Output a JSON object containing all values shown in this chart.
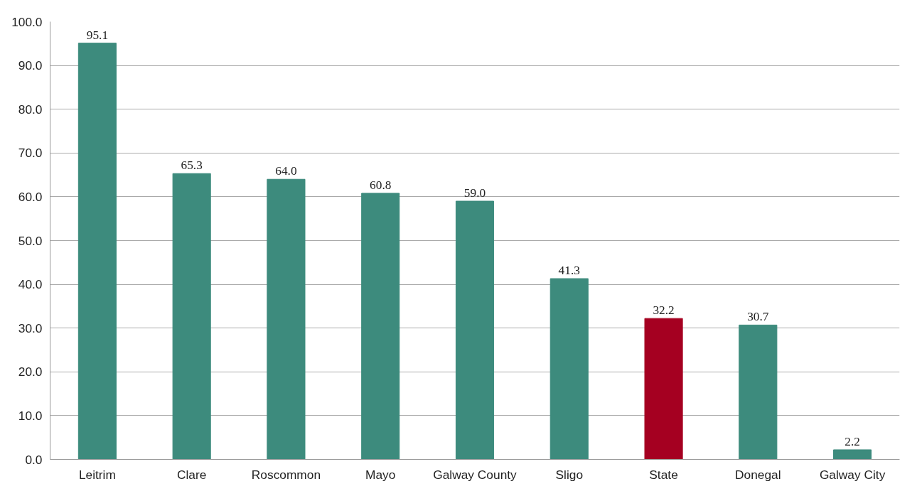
{
  "chart_data": {
    "type": "bar",
    "categories": [
      "Leitrim",
      "Clare",
      "Roscommon",
      "Mayo",
      "Galway County",
      "Sligo",
      "State",
      "Donegal",
      "Galway City"
    ],
    "values": [
      95.1,
      65.3,
      64.0,
      60.8,
      59.0,
      41.3,
      32.2,
      30.7,
      2.2
    ],
    "value_labels": [
      "95.1",
      "65.3",
      "64.0",
      "60.8",
      "59.0",
      "41.3",
      "32.2",
      "30.7",
      "2.2"
    ],
    "colors": [
      "#3d8b7d",
      "#3d8b7d",
      "#3d8b7d",
      "#3d8b7d",
      "#3d8b7d",
      "#3d8b7d",
      "#a50021",
      "#3d8b7d",
      "#3d8b7d"
    ],
    "ylim": [
      0,
      100
    ],
    "yticks": [
      {
        "value": 0,
        "label": "0.0"
      },
      {
        "value": 10,
        "label": "10.0"
      },
      {
        "value": 20,
        "label": "20.0"
      },
      {
        "value": 30,
        "label": "30.0"
      },
      {
        "value": 40,
        "label": "40.0"
      },
      {
        "value": 50,
        "label": "50.0"
      },
      {
        "value": 60,
        "label": "60.0"
      },
      {
        "value": 70,
        "label": "70.0"
      },
      {
        "value": 80,
        "label": "80.0"
      },
      {
        "value": 90,
        "label": "90.0"
      },
      {
        "value": 100,
        "label": "100.0"
      }
    ],
    "grid": "y"
  }
}
